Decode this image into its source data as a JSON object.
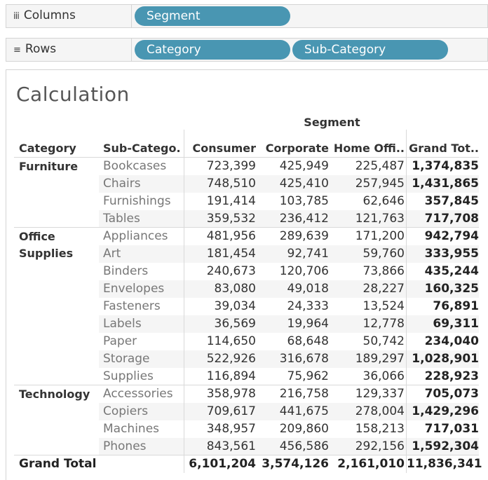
{
  "shelves": {
    "columns": {
      "label": "Columns",
      "icon": "columns-icon",
      "pills": [
        "Segment"
      ]
    },
    "rows": {
      "label": "Rows",
      "icon": "rows-icon",
      "pills": [
        "Category",
        "Sub-Category"
      ]
    }
  },
  "sheet_title": "Calculation",
  "column_group_label": "Segment",
  "headers": [
    "Category",
    "Sub-Catego..",
    "Consumer",
    "Corporate",
    "Home Offi..",
    "Grand Tot.."
  ],
  "pill_color": "#4996b2",
  "categories": [
    {
      "name": "Furniture",
      "rows": [
        {
          "sub": "Bookcases",
          "vals": [
            "723,399",
            "425,949",
            "225,487",
            "1,374,835"
          ]
        },
        {
          "sub": "Chairs",
          "vals": [
            "748,510",
            "425,410",
            "257,945",
            "1,431,865"
          ]
        },
        {
          "sub": "Furnishings",
          "vals": [
            "191,414",
            "103,785",
            "62,646",
            "357,845"
          ]
        },
        {
          "sub": "Tables",
          "vals": [
            "359,532",
            "236,412",
            "121,763",
            "717,708"
          ]
        }
      ]
    },
    {
      "name": "Office Supplies",
      "rows": [
        {
          "sub": "Appliances",
          "vals": [
            "481,956",
            "289,639",
            "171,200",
            "942,794"
          ]
        },
        {
          "sub": "Art",
          "vals": [
            "181,454",
            "92,741",
            "59,760",
            "333,955"
          ]
        },
        {
          "sub": "Binders",
          "vals": [
            "240,673",
            "120,706",
            "73,866",
            "435,244"
          ]
        },
        {
          "sub": "Envelopes",
          "vals": [
            "83,080",
            "49,018",
            "28,227",
            "160,325"
          ]
        },
        {
          "sub": "Fasteners",
          "vals": [
            "39,034",
            "24,333",
            "13,524",
            "76,891"
          ]
        },
        {
          "sub": "Labels",
          "vals": [
            "36,569",
            "19,964",
            "12,778",
            "69,311"
          ]
        },
        {
          "sub": "Paper",
          "vals": [
            "114,650",
            "68,648",
            "50,742",
            "234,040"
          ]
        },
        {
          "sub": "Storage",
          "vals": [
            "522,926",
            "316,678",
            "189,297",
            "1,028,901"
          ]
        },
        {
          "sub": "Supplies",
          "vals": [
            "116,894",
            "75,962",
            "36,066",
            "228,923"
          ]
        }
      ]
    },
    {
      "name": "Technology",
      "rows": [
        {
          "sub": "Accessories",
          "vals": [
            "358,978",
            "216,758",
            "129,337",
            "705,073"
          ]
        },
        {
          "sub": "Copiers",
          "vals": [
            "709,617",
            "441,675",
            "278,004",
            "1,429,296"
          ]
        },
        {
          "sub": "Machines",
          "vals": [
            "348,957",
            "209,860",
            "158,213",
            "717,031"
          ]
        },
        {
          "sub": "Phones",
          "vals": [
            "843,561",
            "456,586",
            "292,156",
            "1,592,304"
          ]
        }
      ]
    }
  ],
  "grand_total": {
    "label": "Grand Total",
    "vals": [
      "6,101,204",
      "3,574,126",
      "2,161,010",
      "11,836,341"
    ]
  },
  "chart_data": {
    "type": "table",
    "title": "Calculation",
    "column_group": "Segment",
    "columns": [
      "Consumer",
      "Corporate",
      "Home Offi..",
      "Grand Tot.."
    ],
    "rows": [
      {
        "category": "Furniture",
        "sub_category": "Bookcases",
        "values": [
          723399,
          425949,
          225487,
          1374835
        ]
      },
      {
        "category": "Furniture",
        "sub_category": "Chairs",
        "values": [
          748510,
          425410,
          257945,
          1431865
        ]
      },
      {
        "category": "Furniture",
        "sub_category": "Furnishings",
        "values": [
          191414,
          103785,
          62646,
          357845
        ]
      },
      {
        "category": "Furniture",
        "sub_category": "Tables",
        "values": [
          359532,
          236412,
          121763,
          717708
        ]
      },
      {
        "category": "Office Supplies",
        "sub_category": "Appliances",
        "values": [
          481956,
          289639,
          171200,
          942794
        ]
      },
      {
        "category": "Office Supplies",
        "sub_category": "Art",
        "values": [
          181454,
          92741,
          59760,
          333955
        ]
      },
      {
        "category": "Office Supplies",
        "sub_category": "Binders",
        "values": [
          240673,
          120706,
          73866,
          435244
        ]
      },
      {
        "category": "Office Supplies",
        "sub_category": "Envelopes",
        "values": [
          83080,
          49018,
          28227,
          160325
        ]
      },
      {
        "category": "Office Supplies",
        "sub_category": "Fasteners",
        "values": [
          39034,
          24333,
          13524,
          76891
        ]
      },
      {
        "category": "Office Supplies",
        "sub_category": "Labels",
        "values": [
          36569,
          19964,
          12778,
          69311
        ]
      },
      {
        "category": "Office Supplies",
        "sub_category": "Paper",
        "values": [
          114650,
          68648,
          50742,
          234040
        ]
      },
      {
        "category": "Office Supplies",
        "sub_category": "Storage",
        "values": [
          522926,
          316678,
          189297,
          1028901
        ]
      },
      {
        "category": "Office Supplies",
        "sub_category": "Supplies",
        "values": [
          116894,
          75962,
          36066,
          228923
        ]
      },
      {
        "category": "Technology",
        "sub_category": "Accessories",
        "values": [
          358978,
          216758,
          129337,
          705073
        ]
      },
      {
        "category": "Technology",
        "sub_category": "Copiers",
        "values": [
          709617,
          441675,
          278004,
          1429296
        ]
      },
      {
        "category": "Technology",
        "sub_category": "Machines",
        "values": [
          348957,
          209860,
          158213,
          717031
        ]
      },
      {
        "category": "Technology",
        "sub_category": "Phones",
        "values": [
          843561,
          456586,
          292156,
          1592304
        ]
      },
      {
        "category": "Grand Total",
        "sub_category": "",
        "values": [
          6101204,
          3574126,
          2161010,
          11836341
        ]
      }
    ]
  }
}
